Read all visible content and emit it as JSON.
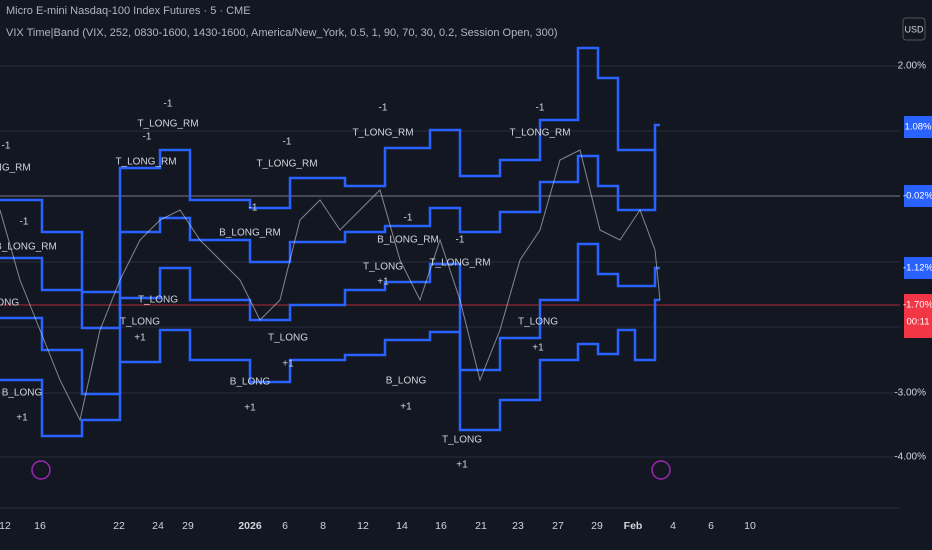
{
  "header": {
    "symbol": "Micro E-mini Nasdaq-100 Index Futures · 5 · CME",
    "indicator": "VIX Time|Band (VIX, 252, 0830-1600, 1430-1600, America/New_York, 0.5, 1, 90, 70, 30, 0.2, Session Open, 300)",
    "currency": "USD"
  },
  "y_axis": {
    "labels": [
      "2.00%",
      "-3.00%",
      "-4.00%"
    ],
    "badges": [
      "1.08%",
      "-0.02%",
      "-1.12%",
      "-1.70%"
    ],
    "countdown": "00:11"
  },
  "x_axis": {
    "labels": [
      "12",
      "16",
      "22",
      "24",
      "29",
      "2026",
      "6",
      "8",
      "12",
      "14",
      "16",
      "21",
      "23",
      "27",
      "29",
      "Feb",
      "4",
      "6",
      "10"
    ]
  },
  "annotations": [
    "-1",
    "T_LONG_RM",
    "-1",
    "T_LONG_RM",
    "-1",
    "T_LONG_RM",
    "-1",
    "T_LONG_RM",
    "-1",
    "T_LONG_RM",
    "-1",
    "LONG_RM",
    "-1",
    "B_LONG_RM",
    "-1",
    "B_LONG_RM",
    "-1",
    "B_LONG_RM",
    "-1",
    "T_LONG_RM",
    "T_LONG",
    "+1",
    "T_LONG",
    "T_LONG",
    "+1",
    "T_LONG",
    "+1",
    "B_LONG",
    "+1",
    "B_LONG",
    "+1",
    "B_LONG",
    "+1",
    "T_LONG",
    "+1",
    "T_LONG",
    "+1",
    "LONG"
  ]
}
